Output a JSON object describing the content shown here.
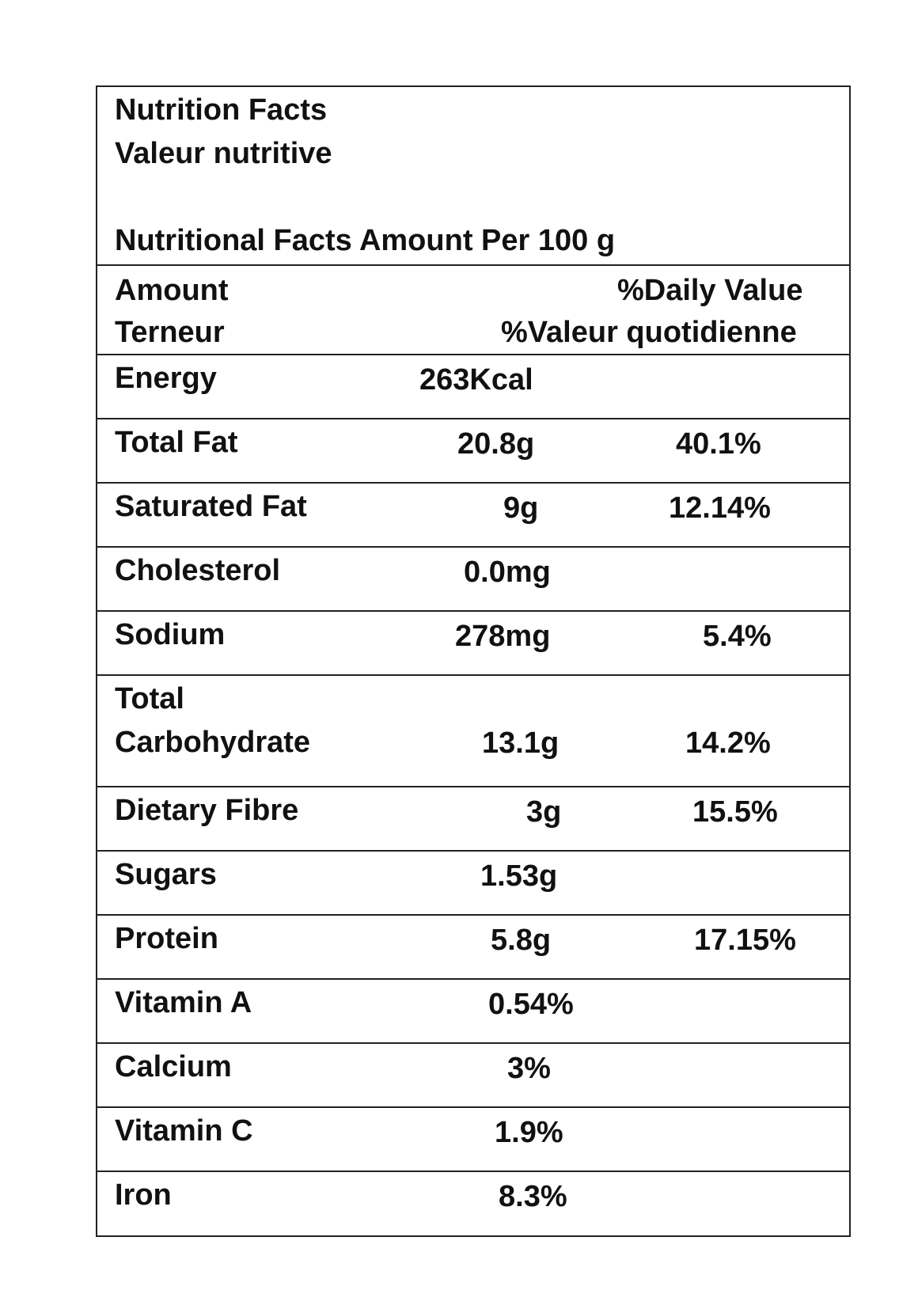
{
  "header": {
    "title_en": "Nutrition Facts",
    "title_fr": "Valeur nutritive",
    "serving": "Nutritional Facts Amount Per 100 g"
  },
  "columns": {
    "amount_en": "Amount",
    "amount_fr": "Terneur",
    "dv_en": "%Daily Value",
    "dv_fr": "%Valeur quotidienne"
  },
  "rows": [
    {
      "name": "Energy",
      "amount": "263Kcal",
      "dv": ""
    },
    {
      "name": "Total Fat",
      "amount": "20.8g",
      "dv": "40.1%"
    },
    {
      "name": "Saturated Fat",
      "amount": "9g",
      "dv": "12.14%"
    },
    {
      "name": "Cholesterol",
      "amount": "0.0mg",
      "dv": ""
    },
    {
      "name": "Sodium",
      "amount": "278mg",
      "dv": "5.4%"
    },
    {
      "name": "Total Carbohydrate",
      "name_line1": "Total",
      "name_line2": "Carbohydrate",
      "amount": "13.1g",
      "dv": "14.2%"
    },
    {
      "name": "Dietary Fibre",
      "amount": "3g",
      "dv": "15.5%"
    },
    {
      "name": "Sugars",
      "amount": "1.53g",
      "dv": ""
    },
    {
      "name": "Protein",
      "amount": "5.8g",
      "dv": "17.15%"
    },
    {
      "name": "Vitamin A",
      "amount": "0.54%",
      "dv": ""
    },
    {
      "name": "Calcium",
      "amount": "3%",
      "dv": ""
    },
    {
      "name": "Vitamin C",
      "amount": "1.9%",
      "dv": ""
    },
    {
      "name": "Iron",
      "amount": "8.3%",
      "dv": ""
    }
  ]
}
